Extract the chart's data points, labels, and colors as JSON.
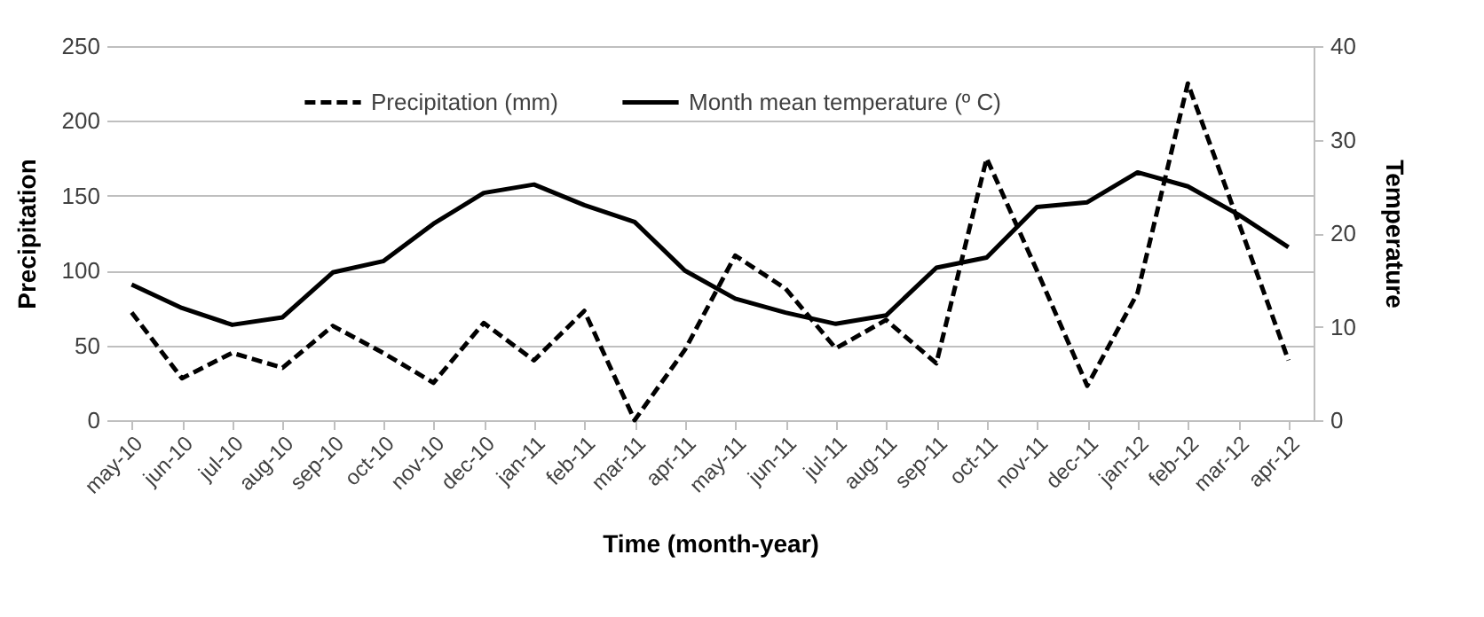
{
  "chart_data": {
    "type": "line",
    "xlabel": "Time (month-year)",
    "ylabel": "Precipitation",
    "y2label": "Temperature",
    "categories": [
      "may-10",
      "jun-10",
      "jul-10",
      "aug-10",
      "sep-10",
      "oct-10",
      "nov-10",
      "dec-10",
      "jan-11",
      "feb-11",
      "mar-11",
      "apr-11",
      "may-11",
      "jun-11",
      "jul-11",
      "aug-11",
      "sep-11",
      "oct-11",
      "nov-11",
      "dec-11",
      "jan-12",
      "feb-12",
      "mar-12",
      "apr-12"
    ],
    "series": [
      {
        "name": "Precipitation (mm)",
        "color": "#000000",
        "line_style": "dashed",
        "values": [
          72,
          28,
          45,
          35,
          63,
          45,
          25,
          65,
          40,
          73,
          0,
          47,
          110,
          88,
          48,
          67,
          38,
          175,
          100,
          23,
          85,
          225,
          133,
          40
        ]
      },
      {
        "name": "Month mean temperature (º C)",
        "color": "#000000",
        "line_style": "solid",
        "axis": "y2",
        "values": [
          14.5,
          12,
          10.2,
          11,
          15.8,
          17,
          21,
          24.3,
          25.2,
          23,
          21.2,
          16,
          13,
          11.5,
          10.3,
          11.2,
          16.3,
          17.4,
          22.8,
          23.3,
          26.5,
          25,
          22,
          18.5
        ]
      }
    ],
    "ylim": [
      0,
      250
    ],
    "yticks": [
      0,
      50,
      100,
      150,
      200,
      250
    ],
    "y2lim": [
      0,
      40
    ],
    "y2ticks": [
      0,
      10,
      20,
      30,
      40
    ],
    "grid": "y",
    "legend": "top",
    "marker": "none"
  }
}
